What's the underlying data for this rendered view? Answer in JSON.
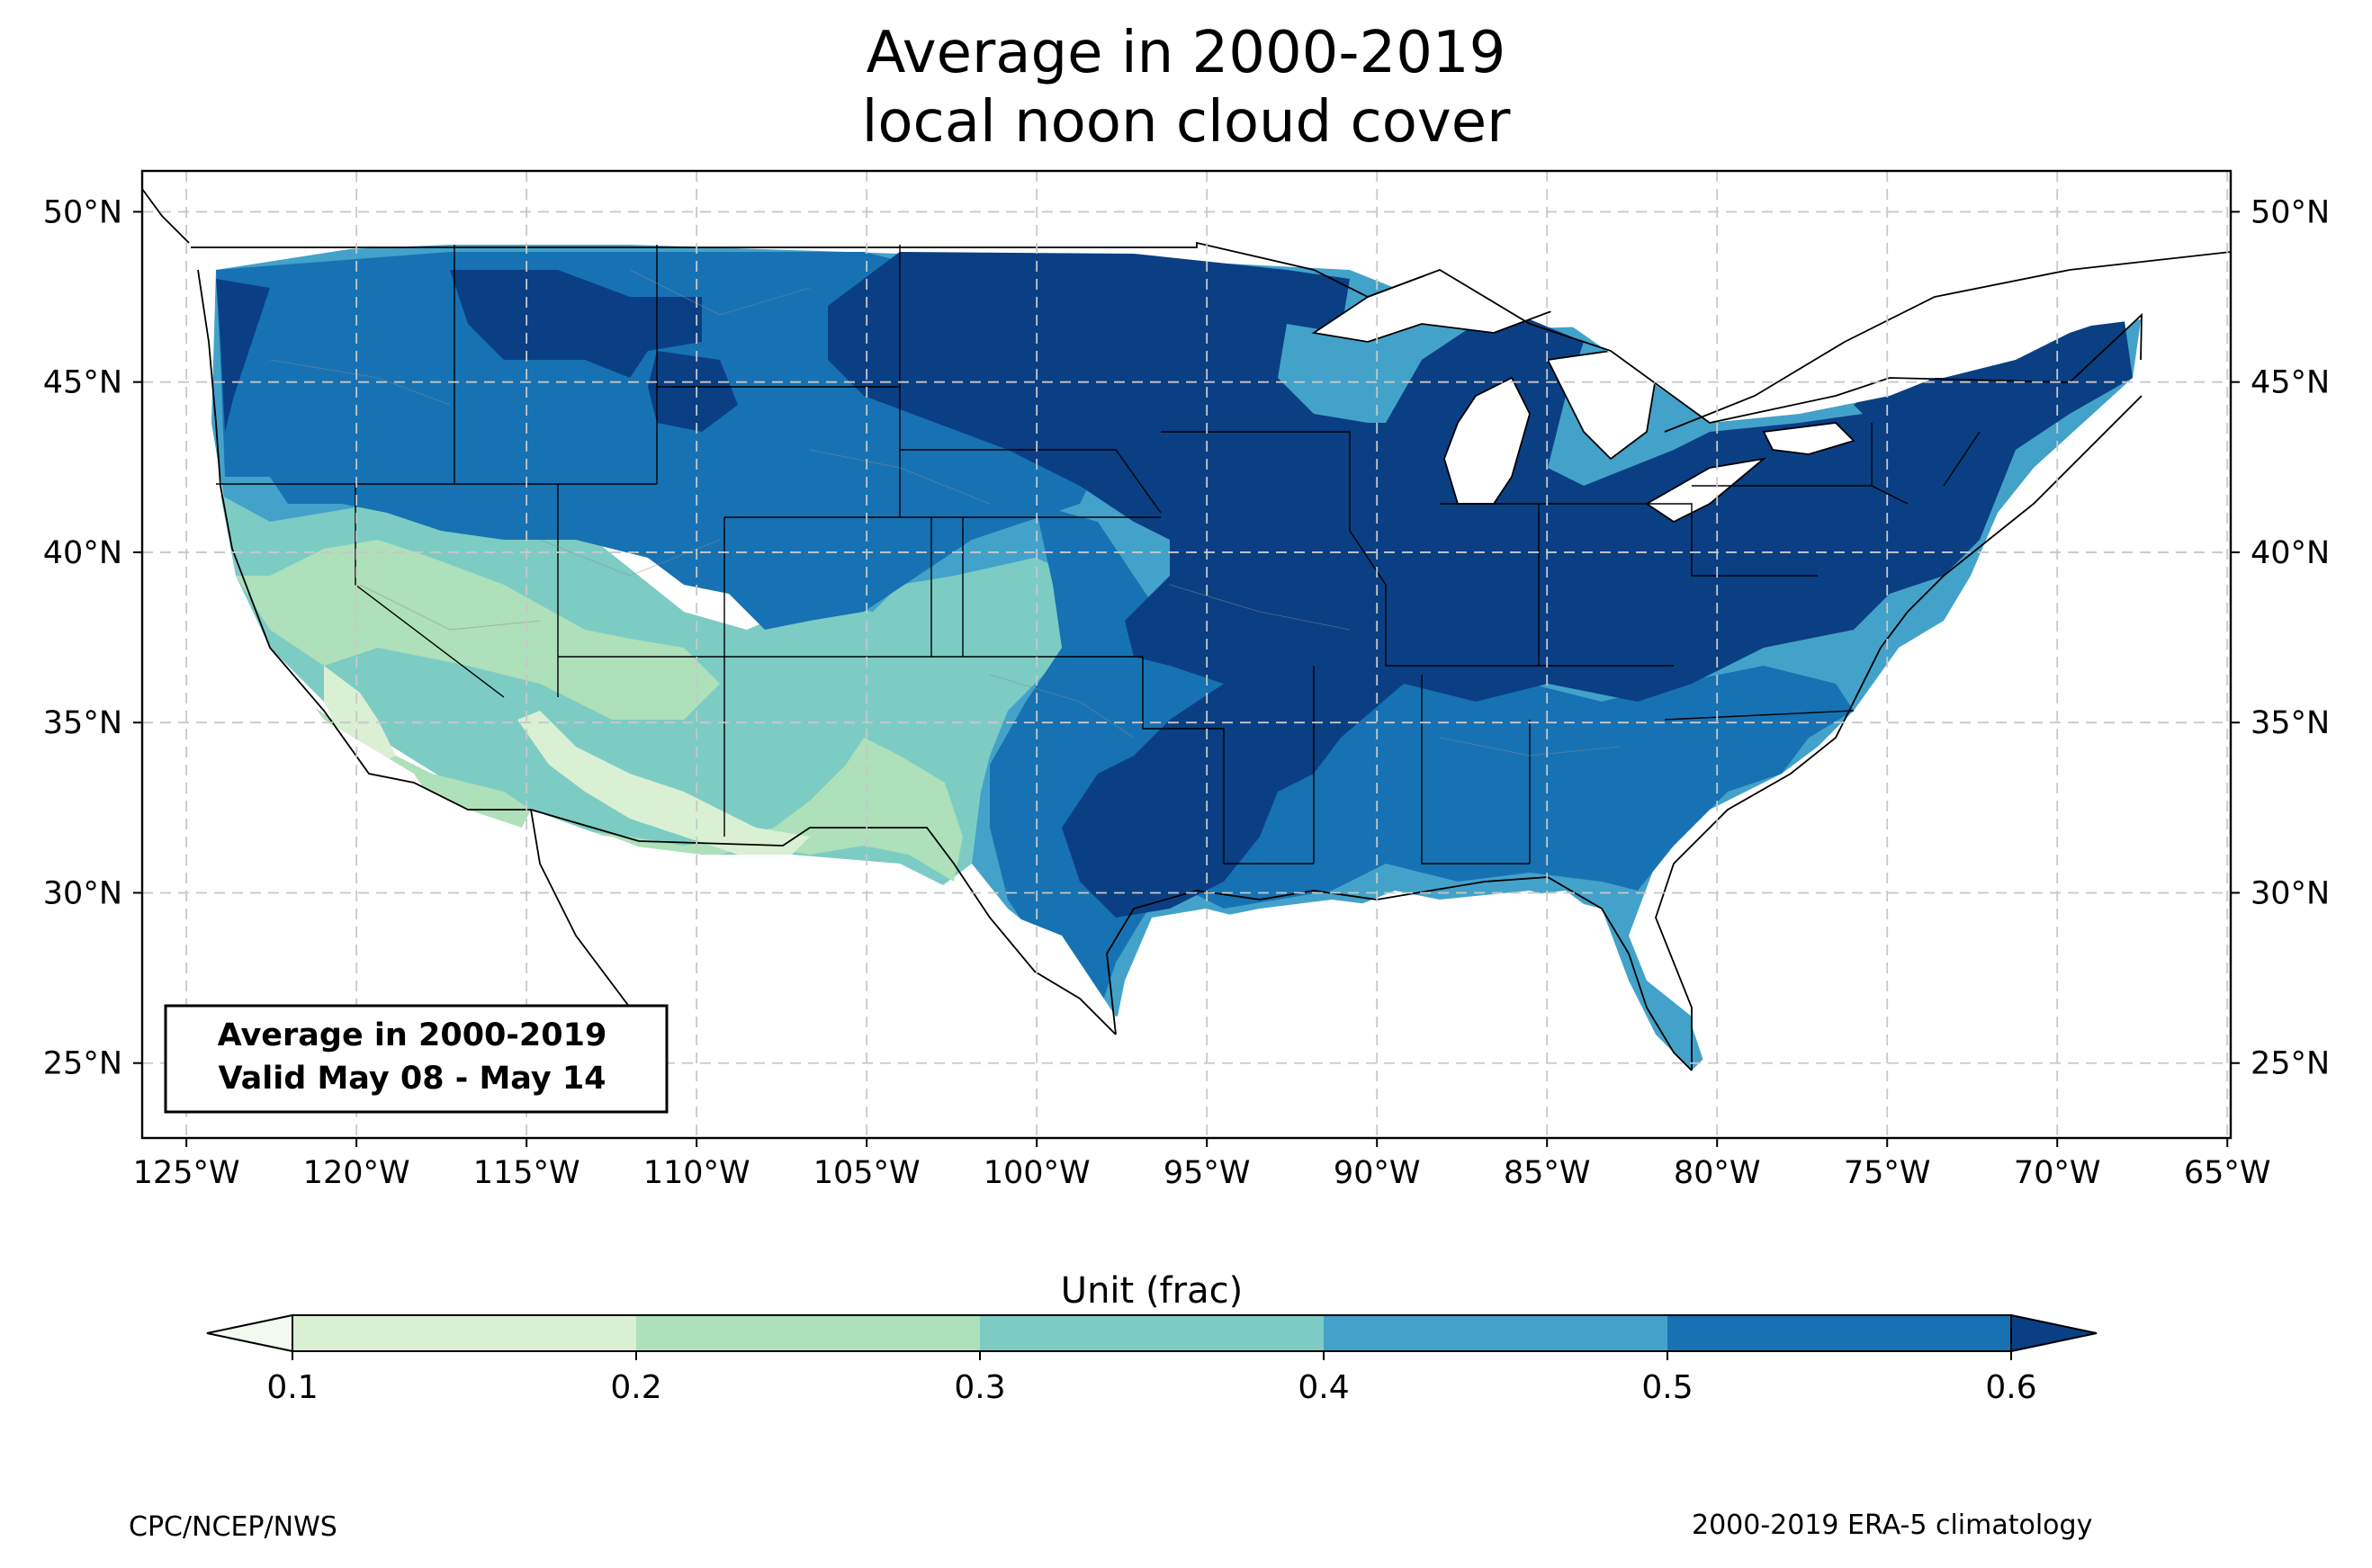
{
  "title": {
    "line1": "Average in 2000-2019",
    "line2": "local noon cloud cover"
  },
  "map": {
    "projection": "PlateCarree",
    "extent": {
      "lon_min": -126.3,
      "lon_max": -64.9,
      "lat_min": 22.8,
      "lat_max": 51.2
    },
    "gridlines": "dashed",
    "lat_ticks": [
      {
        "value": 25,
        "label": "25°N"
      },
      {
        "value": 30,
        "label": "30°N"
      },
      {
        "value": 35,
        "label": "35°N"
      },
      {
        "value": 40,
        "label": "40°N"
      },
      {
        "value": 45,
        "label": "45°N"
      },
      {
        "value": 50,
        "label": "50°N"
      }
    ],
    "lon_ticks": [
      {
        "value": -125,
        "label": "125°W"
      },
      {
        "value": -120,
        "label": "120°W"
      },
      {
        "value": -115,
        "label": "115°W"
      },
      {
        "value": -110,
        "label": "110°W"
      },
      {
        "value": -105,
        "label": "105°W"
      },
      {
        "value": -100,
        "label": "100°W"
      },
      {
        "value": -95,
        "label": "95°W"
      },
      {
        "value": -90,
        "label": "90°W"
      },
      {
        "value": -85,
        "label": "85°W"
      },
      {
        "value": -80,
        "label": "80°W"
      },
      {
        "value": -75,
        "label": "75°W"
      },
      {
        "value": -70,
        "label": "70°W"
      },
      {
        "value": -65,
        "label": "65°W"
      }
    ],
    "annotation": {
      "line1": "Average in 2000-2019",
      "line2": "Valid May 08 - May 14"
    }
  },
  "chart_data": {
    "type": "heatmap",
    "variable": "local noon cloud cover",
    "period": "2000-2019",
    "valid": "May 08 - May 14",
    "levels": [
      0.1,
      0.2,
      0.3,
      0.4,
      0.5,
      0.6
    ],
    "colors": [
      "#f2f9ee",
      "#d9f0d3",
      "#aee0b9",
      "#7cccc4",
      "#43a2ca",
      "#1772b3",
      "#0a3f84"
    ],
    "colorbar": {
      "label": "Unit (frac)",
      "ticks": [
        "0.1",
        "0.2",
        "0.3",
        "0.4",
        "0.5",
        "0.6"
      ],
      "extend": "both"
    }
  },
  "footer": {
    "left": "CPC/NCEP/NWS",
    "right": "2000-2019 ERA-5 climatology"
  }
}
